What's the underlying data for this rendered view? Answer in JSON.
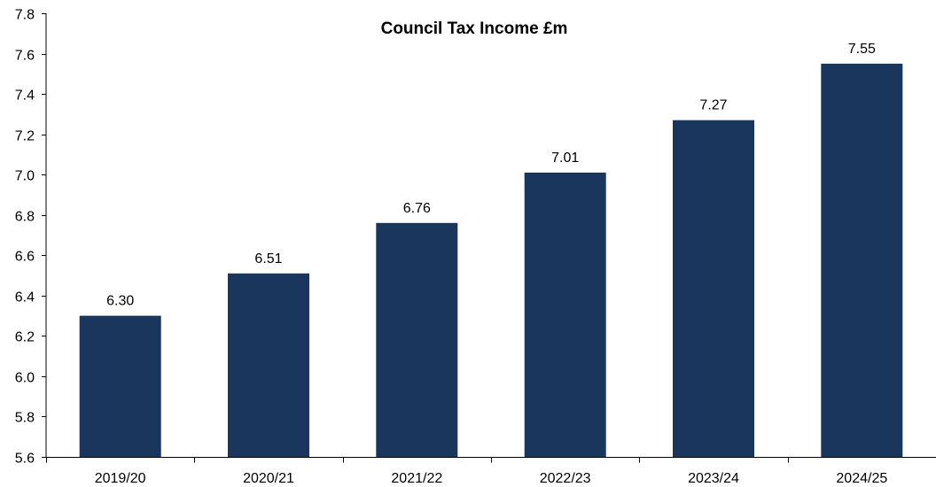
{
  "chart_data": {
    "type": "bar",
    "title": "Council Tax Income £m",
    "xlabel": "",
    "ylabel": "",
    "categories": [
      "2019/20",
      "2020/21",
      "2021/22",
      "2022/23",
      "2023/24",
      "2024/25"
    ],
    "series": [
      {
        "values": [
          6.3,
          6.51,
          6.76,
          7.01,
          7.27,
          7.55
        ],
        "color": "#1b365d"
      }
    ],
    "data_labels": [
      "6.30",
      "6.51",
      "6.76",
      "7.01",
      "7.27",
      "7.55"
    ],
    "ylim": [
      5.6,
      7.8
    ],
    "y_ticks": [
      5.6,
      5.8,
      6.0,
      6.2,
      6.4,
      6.6,
      6.8,
      7.0,
      7.2,
      7.4,
      7.6,
      7.8
    ],
    "y_tick_labels": [
      "5.6",
      "5.8",
      "6.0",
      "6.2",
      "6.4",
      "6.6",
      "6.8",
      "7.0",
      "7.2",
      "7.4",
      "7.6",
      "7.8"
    ],
    "grid": false,
    "legend": "none"
  }
}
